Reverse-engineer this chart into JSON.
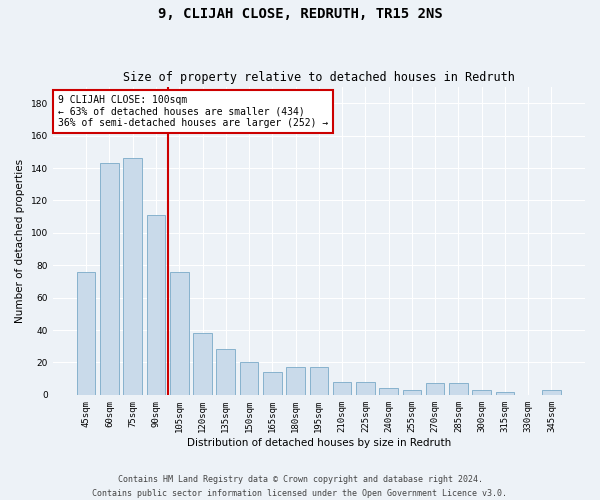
{
  "title": "9, CLIJAH CLOSE, REDRUTH, TR15 2NS",
  "subtitle": "Size of property relative to detached houses in Redruth",
  "xlabel": "Distribution of detached houses by size in Redruth",
  "ylabel": "Number of detached properties",
  "categories": [
    "45sqm",
    "60sqm",
    "75sqm",
    "90sqm",
    "105sqm",
    "120sqm",
    "135sqm",
    "150sqm",
    "165sqm",
    "180sqm",
    "195sqm",
    "210sqm",
    "225sqm",
    "240sqm",
    "255sqm",
    "270sqm",
    "285sqm",
    "300sqm",
    "315sqm",
    "330sqm",
    "345sqm"
  ],
  "values": [
    76,
    143,
    146,
    111,
    76,
    38,
    28,
    20,
    14,
    17,
    17,
    8,
    8,
    4,
    3,
    7,
    7,
    3,
    2,
    0,
    3
  ],
  "bar_color": "#c9daea",
  "bar_edge_color": "#7aaac8",
  "bar_edge_width": 0.6,
  "vline_color": "#cc0000",
  "vline_bar_index": 3,
  "annotation_text": "9 CLIJAH CLOSE: 100sqm\n← 63% of detached houses are smaller (434)\n36% of semi-detached houses are larger (252) →",
  "annotation_box_color": "#ffffff",
  "annotation_box_edge": "#cc0000",
  "ylim": [
    0,
    190
  ],
  "yticks": [
    0,
    20,
    40,
    60,
    80,
    100,
    120,
    140,
    160,
    180
  ],
  "footer_line1": "Contains HM Land Registry data © Crown copyright and database right 2024.",
  "footer_line2": "Contains public sector information licensed under the Open Government Licence v3.0.",
  "bg_color": "#edf2f7",
  "grid_color": "#ffffff",
  "title_fontsize": 10,
  "subtitle_fontsize": 8.5,
  "axis_label_fontsize": 7.5,
  "tick_fontsize": 6.5,
  "annotation_fontsize": 7,
  "footer_fontsize": 6
}
